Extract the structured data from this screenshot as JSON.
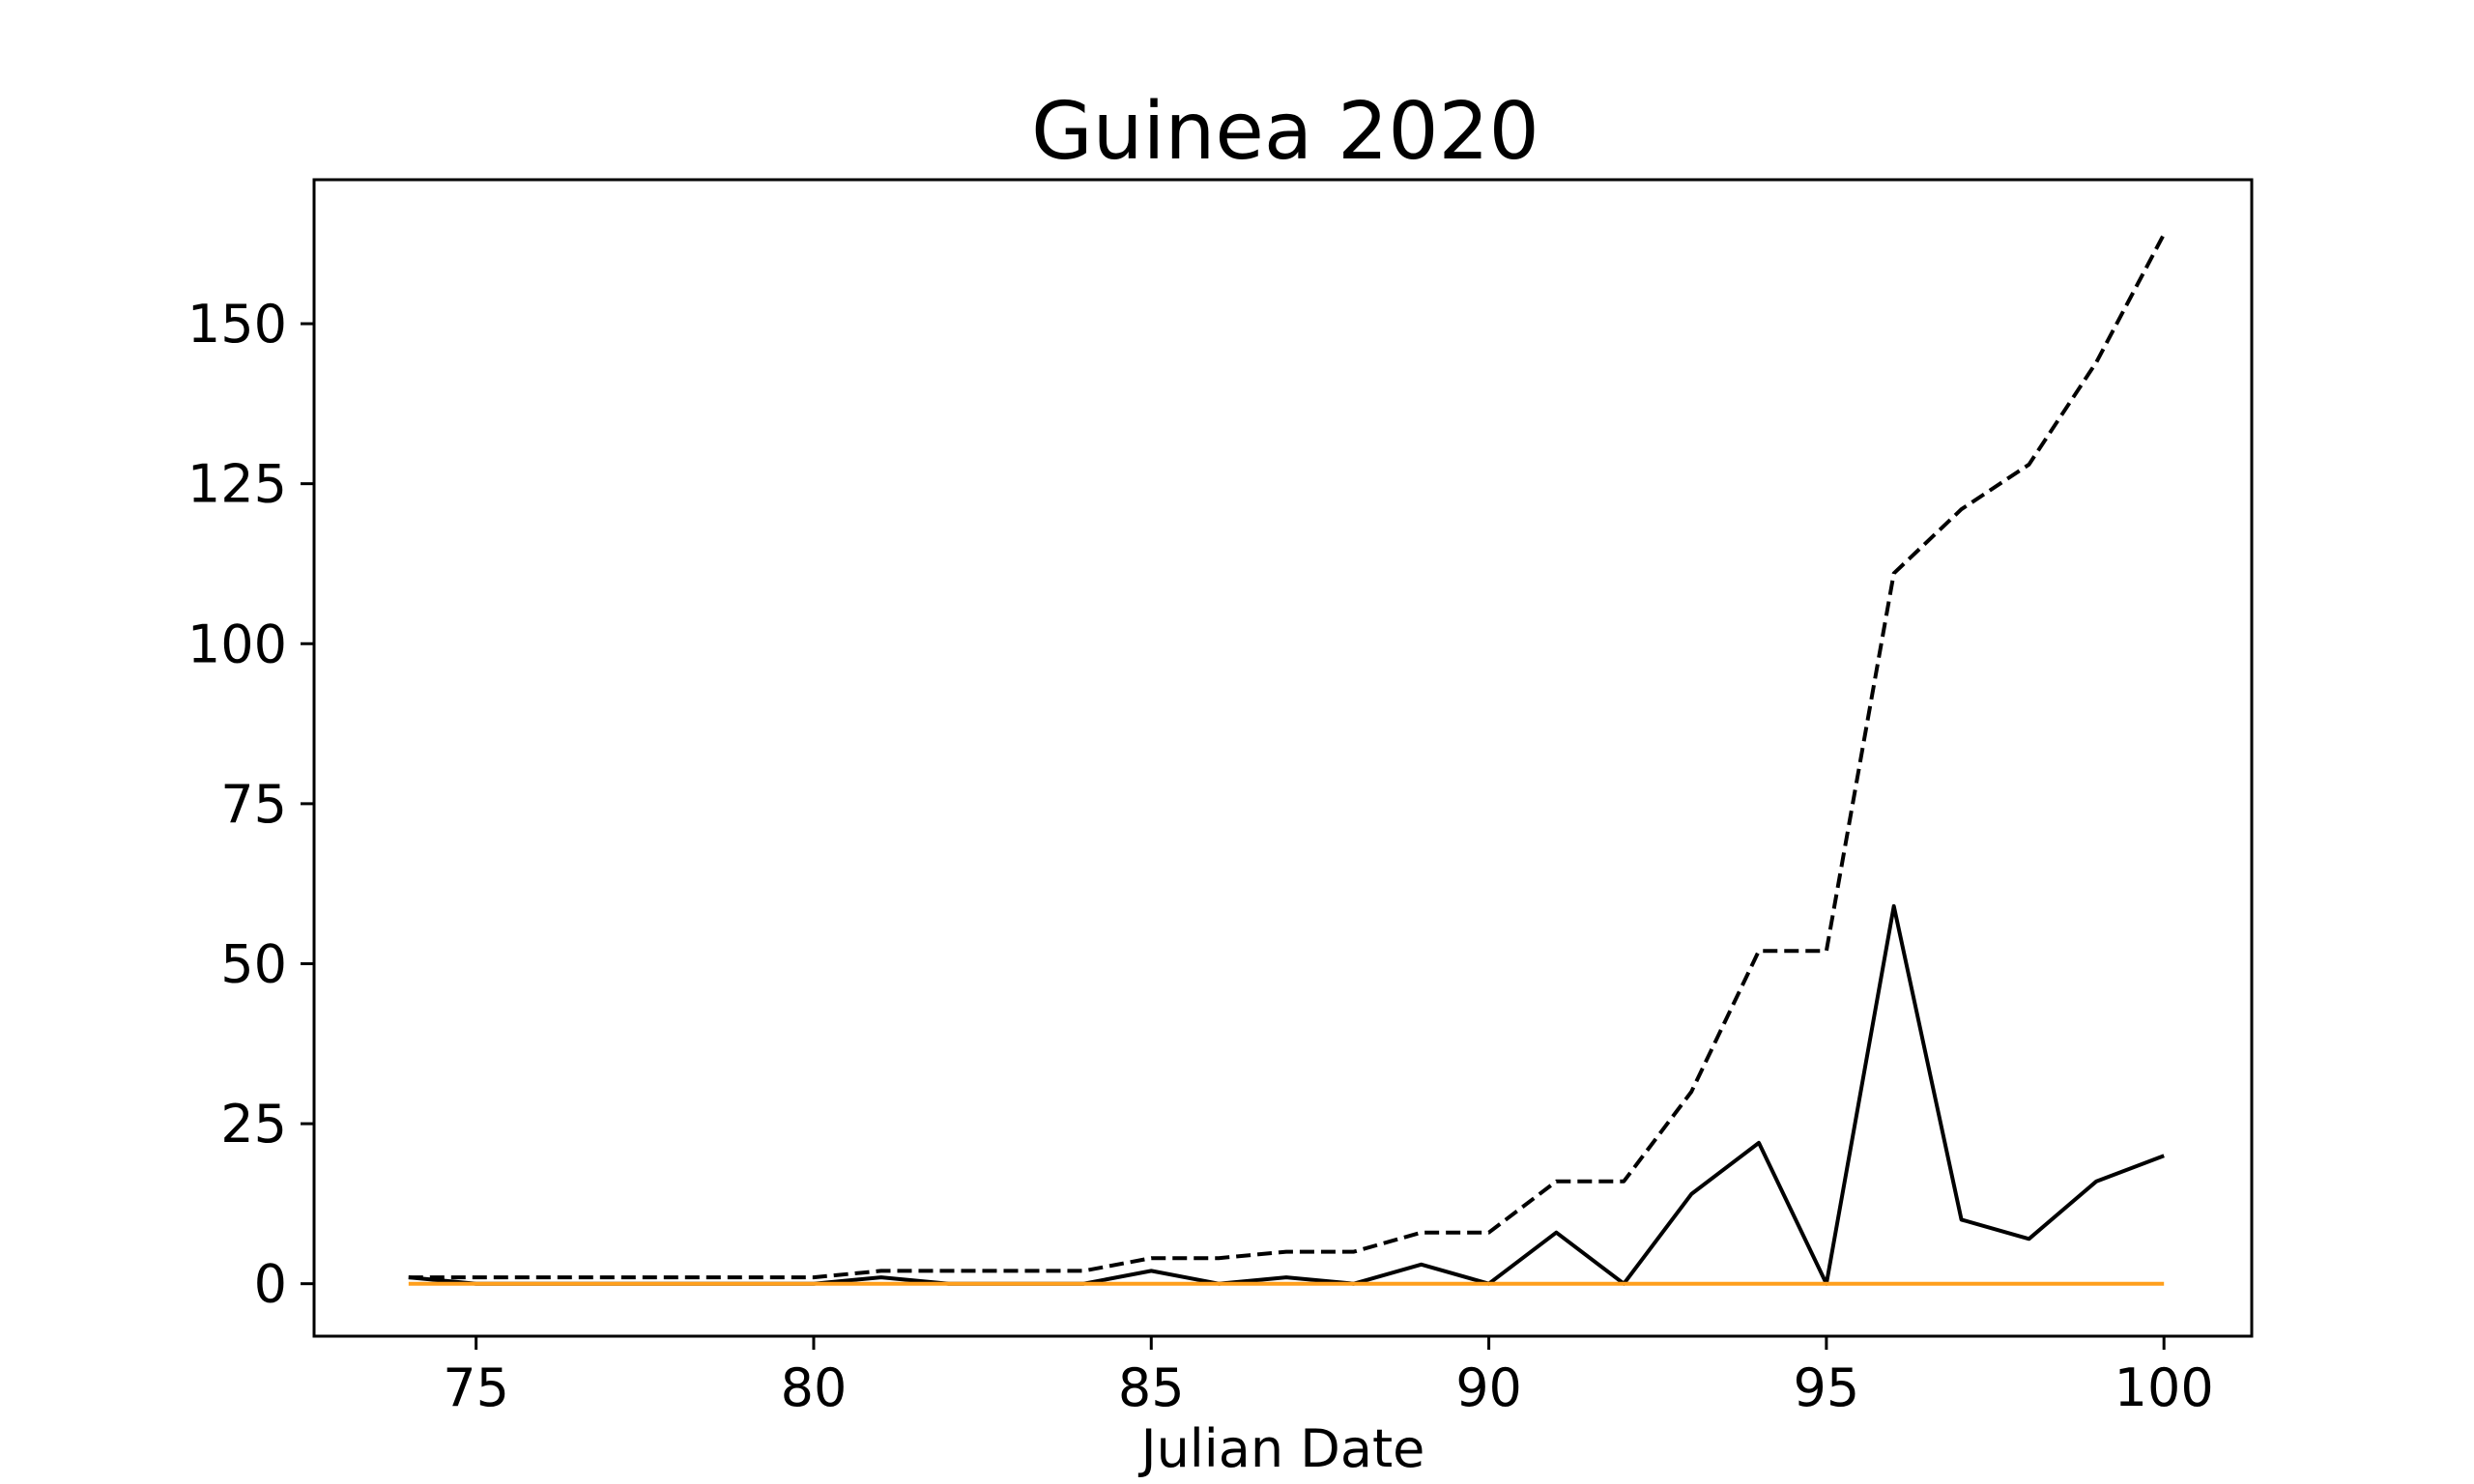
{
  "chart_data": {
    "type": "line",
    "title": "Guinea 2020",
    "xlabel": "Julian Date",
    "ylabel": "",
    "xlim": [
      72.6,
      101.3
    ],
    "ylim": [
      -8.2,
      172.5
    ],
    "xticks": [
      75,
      80,
      85,
      90,
      95,
      100
    ],
    "yticks": [
      0,
      25,
      50,
      75,
      100,
      125,
      150
    ],
    "grid": false,
    "legend": "none",
    "x": [
      74,
      75,
      76,
      77,
      78,
      79,
      80,
      81,
      82,
      83,
      84,
      85,
      86,
      87,
      88,
      89,
      90,
      91,
      92,
      93,
      94,
      95,
      96,
      97,
      98,
      99,
      100
    ],
    "series": [
      {
        "style": "dashed",
        "color": "#000000",
        "values": [
          1,
          1,
          1,
          1,
          1,
          1,
          1,
          2,
          2,
          2,
          2,
          4,
          4,
          5,
          5,
          8,
          8,
          16,
          16,
          30,
          52,
          52,
          111,
          121,
          128,
          144,
          164
        ]
      },
      {
        "style": "solid",
        "color": "#000000",
        "values": [
          1,
          0,
          0,
          0,
          0,
          0,
          0,
          1,
          0,
          0,
          0,
          2,
          0,
          1,
          0,
          3,
          0,
          8,
          0,
          14,
          22,
          0,
          59,
          10,
          7,
          16,
          20
        ]
      },
      {
        "style": "solid",
        "color": "#ff9f1c",
        "values": [
          0,
          0,
          0,
          0,
          0,
          0,
          0,
          0,
          0,
          0,
          0,
          0,
          0,
          0,
          0,
          0,
          0,
          0,
          0,
          0,
          0,
          0,
          0,
          0,
          0,
          0,
          0
        ]
      }
    ]
  }
}
